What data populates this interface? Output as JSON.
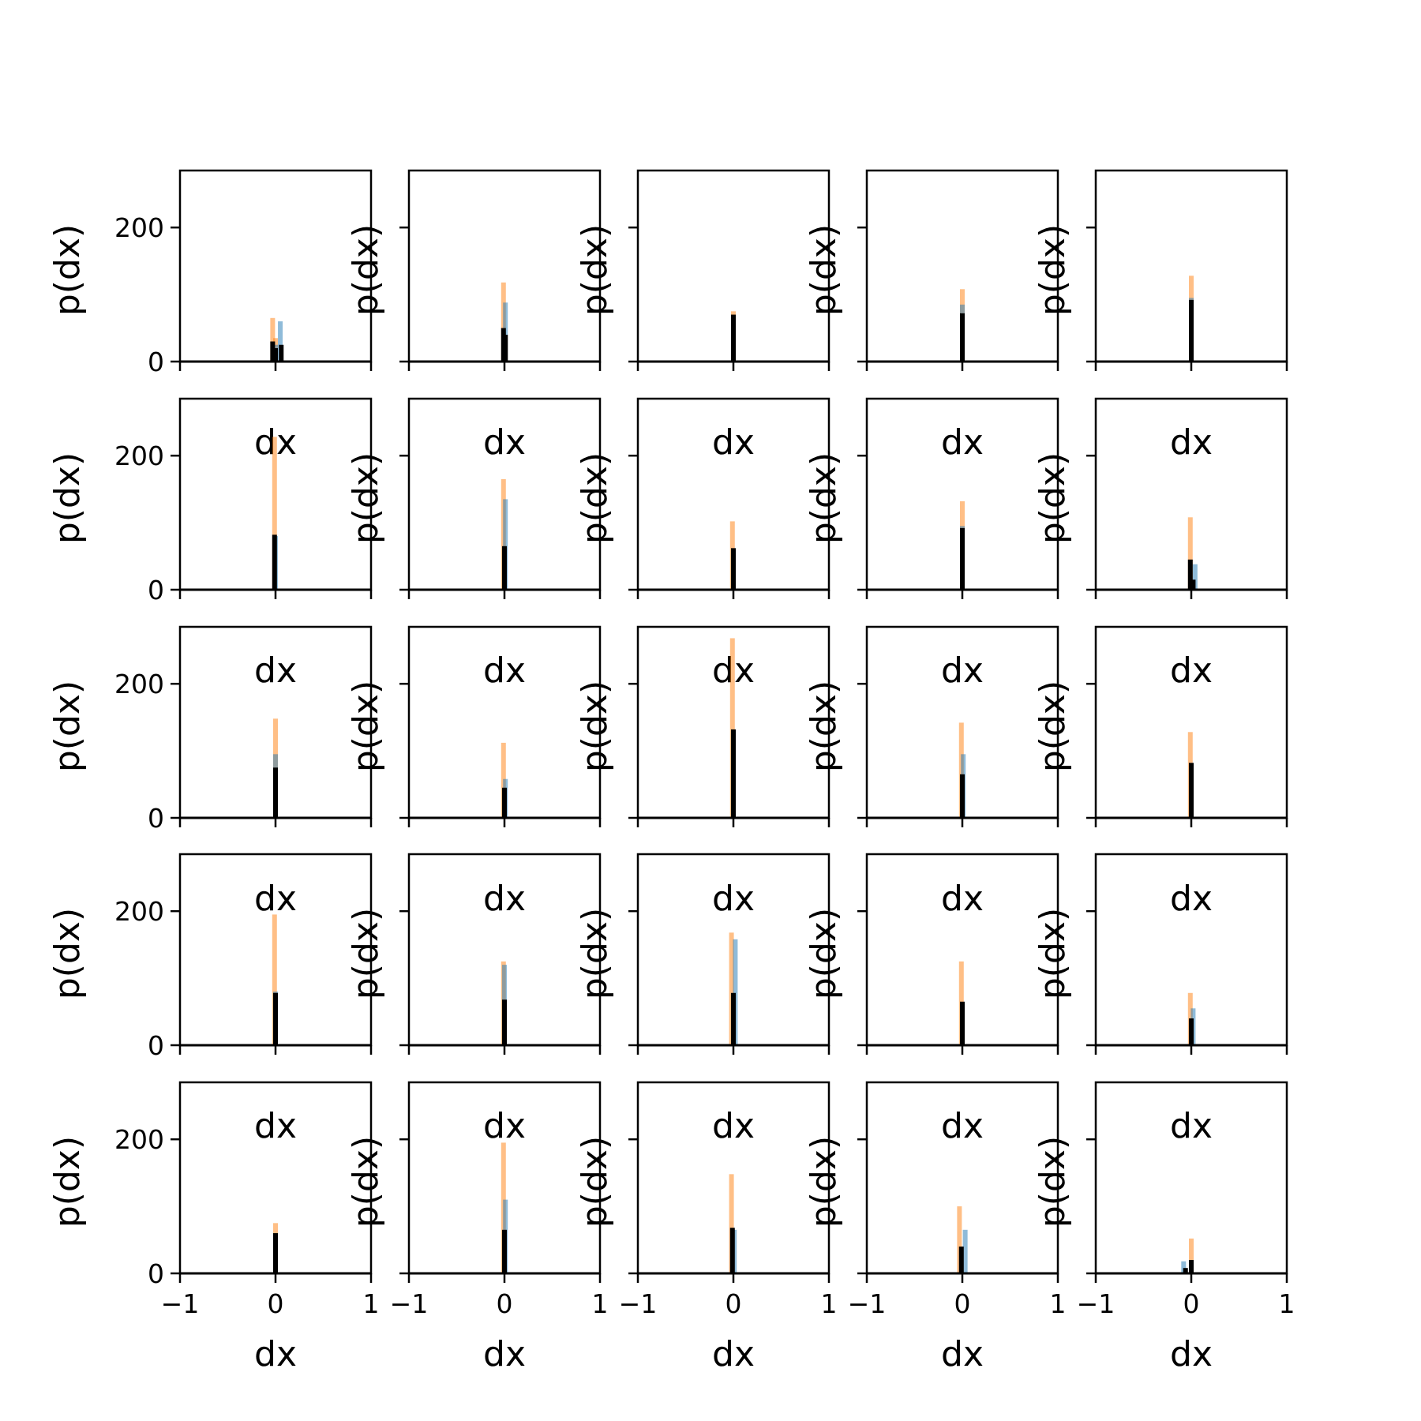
{
  "chart_data": {
    "type": "histogram-grid",
    "rows": 5,
    "cols": 5,
    "xlabel": "dx",
    "ylabel": "p(dx)",
    "xlim": [
      -1,
      1
    ],
    "ylim": [
      0,
      285
    ],
    "xticks": [
      -1,
      0,
      1
    ],
    "xtick_labels": [
      "−1",
      "0",
      "1"
    ],
    "yticks": [
      0,
      200
    ],
    "ytick_labels": [
      "0",
      "200"
    ],
    "series_colors": {
      "orange": "#ff7f0e",
      "blue": "#1f77b4",
      "black": "#000000"
    },
    "panels": [
      {
        "orange": [
          [
            -0.03,
            65
          ],
          [
            0.0,
            35
          ]
        ],
        "blue": [
          [
            0.05,
            60
          ],
          [
            0.0,
            25
          ]
        ],
        "black": [
          [
            -0.03,
            30
          ],
          [
            0.0,
            20
          ],
          [
            0.06,
            25
          ]
        ]
      },
      {
        "orange": [
          [
            -0.01,
            118
          ],
          [
            0.01,
            40
          ]
        ],
        "blue": [
          [
            0.01,
            88
          ]
        ],
        "black": [
          [
            -0.01,
            50
          ],
          [
            0.01,
            40
          ]
        ]
      },
      {
        "orange": [
          [
            0.0,
            75
          ]
        ],
        "blue": [
          [
            0.0,
            65
          ]
        ],
        "black": [
          [
            0.0,
            70
          ]
        ]
      },
      {
        "orange": [
          [
            0.0,
            108
          ]
        ],
        "blue": [
          [
            0.0,
            85
          ]
        ],
        "black": [
          [
            0.0,
            72
          ]
        ]
      },
      {
        "orange": [
          [
            0.0,
            128
          ]
        ],
        "blue": [
          [
            0.0,
            95
          ]
        ],
        "black": [
          [
            0.0,
            92
          ]
        ]
      },
      {
        "orange": [
          [
            -0.01,
            228
          ]
        ],
        "blue": [
          [
            0.0,
            80
          ]
        ],
        "black": [
          [
            -0.01,
            82
          ]
        ]
      },
      {
        "orange": [
          [
            -0.01,
            165
          ]
        ],
        "blue": [
          [
            0.01,
            135
          ]
        ],
        "black": [
          [
            0.0,
            65
          ]
        ]
      },
      {
        "orange": [
          [
            -0.01,
            102
          ]
        ],
        "blue": [
          [
            0.0,
            60
          ]
        ],
        "black": [
          [
            0.0,
            62
          ]
        ]
      },
      {
        "orange": [
          [
            0.0,
            132
          ]
        ],
        "blue": [
          [
            0.0,
            95
          ]
        ],
        "black": [
          [
            0.0,
            92
          ]
        ]
      },
      {
        "orange": [
          [
            -0.01,
            108
          ]
        ],
        "blue": [
          [
            0.04,
            38
          ]
        ],
        "black": [
          [
            -0.01,
            45
          ],
          [
            0.02,
            15
          ]
        ]
      },
      {
        "orange": [
          [
            0.0,
            148
          ]
        ],
        "blue": [
          [
            0.0,
            95
          ]
        ],
        "black": [
          [
            0.0,
            75
          ]
        ]
      },
      {
        "orange": [
          [
            -0.01,
            112
          ]
        ],
        "blue": [
          [
            0.01,
            58
          ]
        ],
        "black": [
          [
            0.0,
            45
          ]
        ]
      },
      {
        "orange": [
          [
            -0.01,
            268
          ]
        ],
        "blue": [
          [
            0.0,
            130
          ]
        ],
        "black": [
          [
            0.0,
            132
          ]
        ]
      },
      {
        "orange": [
          [
            -0.01,
            142
          ]
        ],
        "blue": [
          [
            0.01,
            95
          ]
        ],
        "black": [
          [
            0.0,
            65
          ]
        ]
      },
      {
        "orange": [
          [
            -0.01,
            128
          ]
        ],
        "blue": [
          [
            0.0,
            82
          ]
        ],
        "black": [
          [
            0.0,
            82
          ]
        ]
      },
      {
        "orange": [
          [
            -0.01,
            195
          ]
        ],
        "blue": [
          [
            0.0,
            80
          ]
        ],
        "black": [
          [
            0.0,
            78
          ]
        ]
      },
      {
        "orange": [
          [
            -0.01,
            125
          ]
        ],
        "blue": [
          [
            0.0,
            120
          ]
        ],
        "black": [
          [
            0.0,
            68
          ]
        ]
      },
      {
        "orange": [
          [
            -0.02,
            168
          ]
        ],
        "blue": [
          [
            0.02,
            158
          ]
        ],
        "black": [
          [
            0.0,
            78
          ]
        ]
      },
      {
        "orange": [
          [
            -0.01,
            125
          ]
        ],
        "blue": [
          [
            0.0,
            60
          ]
        ],
        "black": [
          [
            0.0,
            65
          ]
        ]
      },
      {
        "orange": [
          [
            -0.01,
            78
          ]
        ],
        "blue": [
          [
            0.02,
            55
          ]
        ],
        "black": [
          [
            0.0,
            40
          ]
        ]
      },
      {
        "orange": [
          [
            0.0,
            75
          ]
        ],
        "blue": [
          [
            0.0,
            55
          ]
        ],
        "black": [
          [
            0.0,
            60
          ]
        ]
      },
      {
        "orange": [
          [
            -0.01,
            195
          ]
        ],
        "blue": [
          [
            0.01,
            110
          ]
        ],
        "black": [
          [
            0.0,
            65
          ]
        ]
      },
      {
        "orange": [
          [
            -0.02,
            148
          ]
        ],
        "blue": [
          [
            0.01,
            65
          ]
        ],
        "black": [
          [
            -0.01,
            68
          ]
        ]
      },
      {
        "orange": [
          [
            -0.03,
            100
          ]
        ],
        "blue": [
          [
            0.03,
            65
          ]
        ],
        "black": [
          [
            -0.01,
            40
          ]
        ]
      },
      {
        "orange": [
          [
            0.0,
            52
          ]
        ],
        "blue": [
          [
            -0.08,
            18
          ]
        ],
        "black": [
          [
            0.0,
            20
          ],
          [
            -0.06,
            8
          ]
        ]
      }
    ]
  }
}
